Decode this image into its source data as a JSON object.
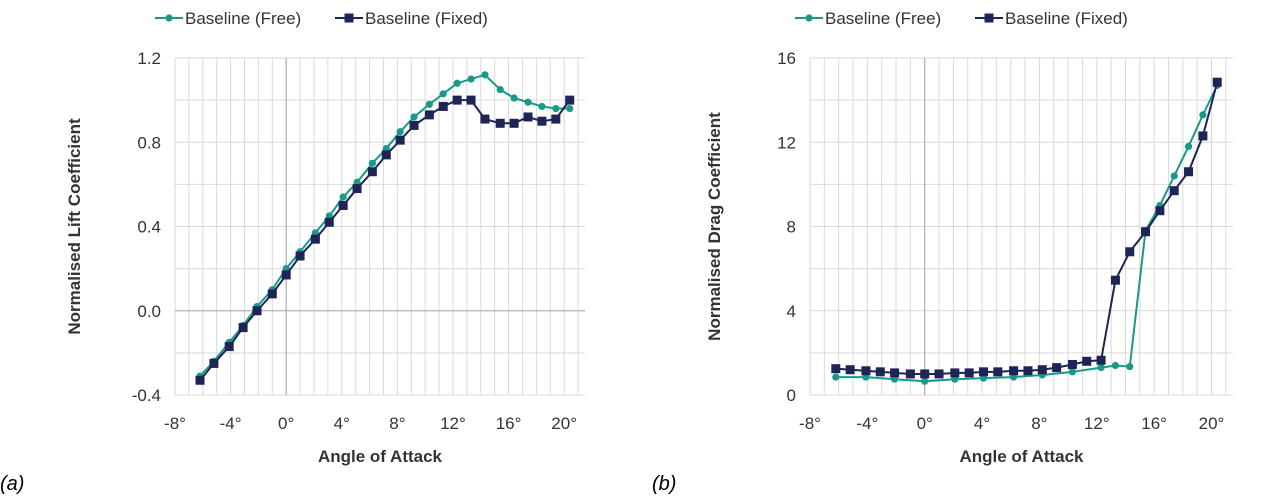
{
  "chart_data": [
    {
      "type": "line",
      "panel_label": "(a)",
      "xlabel": "Angle of Attack",
      "ylabel": "Normalised Lift Coefficient",
      "xlim": [
        -8,
        21.5
      ],
      "ylim": [
        -0.4,
        1.2
      ],
      "x_ticks": [
        -8,
        -4,
        0,
        4,
        8,
        12,
        16,
        20
      ],
      "x_tick_labels": [
        "-8°",
        "-4°",
        "0°",
        "4°",
        "8°",
        "12°",
        "16°",
        "20°"
      ],
      "y_ticks": [
        -0.4,
        0.0,
        0.4,
        0.8,
        1.2
      ],
      "y_tick_labels": [
        "-0.4",
        "0.0",
        "0.4",
        "0.8",
        "1.2"
      ],
      "grid": true,
      "legend_position": "top",
      "series": [
        {
          "name": "Baseline (Free)",
          "color": "#1a9988",
          "marker": "circle",
          "x": [
            -6.2,
            -5.2,
            -4.1,
            -3.1,
            -2.1,
            -1.0,
            0.0,
            1.0,
            2.1,
            3.1,
            4.1,
            5.1,
            6.2,
            7.2,
            8.2,
            9.2,
            10.3,
            11.3,
            12.3,
            13.3,
            14.3,
            15.4,
            16.4,
            17.4,
            18.4,
            19.4,
            20.4
          ],
          "y": [
            -0.31,
            -0.24,
            -0.15,
            -0.07,
            0.02,
            0.1,
            0.2,
            0.28,
            0.37,
            0.45,
            0.54,
            0.61,
            0.7,
            0.77,
            0.85,
            0.92,
            0.98,
            1.03,
            1.08,
            1.1,
            1.12,
            1.05,
            1.01,
            0.99,
            0.97,
            0.96,
            0.96
          ]
        },
        {
          "name": "Baseline (Fixed)",
          "color": "#1e2456",
          "marker": "square",
          "x": [
            -6.2,
            -5.2,
            -4.1,
            -3.1,
            -2.1,
            -1.0,
            0.0,
            1.0,
            2.1,
            3.1,
            4.1,
            5.1,
            6.2,
            7.2,
            8.2,
            9.2,
            10.3,
            11.3,
            12.3,
            13.3,
            14.3,
            15.4,
            16.4,
            17.4,
            18.4,
            19.4,
            20.4
          ],
          "y": [
            -0.33,
            -0.25,
            -0.17,
            -0.08,
            0.0,
            0.08,
            0.17,
            0.26,
            0.34,
            0.42,
            0.5,
            0.58,
            0.66,
            0.74,
            0.81,
            0.88,
            0.93,
            0.97,
            1.0,
            1.0,
            0.91,
            0.89,
            0.89,
            0.92,
            0.9,
            0.91,
            1.0
          ]
        }
      ]
    },
    {
      "type": "line",
      "panel_label": "(b)",
      "xlabel": "Angle of Attack",
      "ylabel": "Normalised Drag Coefficient",
      "xlim": [
        -8,
        21.5
      ],
      "ylim": [
        0,
        16
      ],
      "x_ticks": [
        -8,
        -4,
        0,
        4,
        8,
        12,
        16,
        20
      ],
      "x_tick_labels": [
        "-8°",
        "-4°",
        "0°",
        "4°",
        "8°",
        "12°",
        "16°",
        "20°"
      ],
      "y_ticks": [
        0,
        4,
        8,
        12,
        16
      ],
      "y_tick_labels": [
        "0",
        "4",
        "8",
        "12",
        "16"
      ],
      "grid": true,
      "legend_position": "top",
      "series": [
        {
          "name": "Baseline (Free)",
          "color": "#1a9988",
          "marker": "circle",
          "x": [
            -6.2,
            -4.1,
            -2.1,
            0.0,
            2.1,
            4.1,
            6.2,
            8.2,
            10.3,
            12.3,
            13.3,
            14.3,
            15.4,
            16.4,
            17.4,
            18.4,
            19.4,
            20.4
          ],
          "y": [
            0.85,
            0.85,
            0.75,
            0.65,
            0.75,
            0.8,
            0.85,
            0.95,
            1.1,
            1.3,
            1.4,
            1.35,
            7.8,
            9.0,
            10.4,
            11.8,
            13.3,
            14.7
          ]
        },
        {
          "name": "Baseline (Fixed)",
          "color": "#1e2456",
          "marker": "square",
          "x": [
            -6.2,
            -5.2,
            -4.1,
            -3.1,
            -2.1,
            -1.0,
            0.0,
            1.0,
            2.1,
            3.1,
            4.1,
            5.1,
            6.2,
            7.2,
            8.2,
            9.2,
            10.3,
            11.3,
            12.3,
            13.3,
            14.3,
            15.4,
            16.4,
            17.4,
            18.4,
            19.4,
            20.4
          ],
          "y": [
            1.25,
            1.2,
            1.15,
            1.1,
            1.05,
            1.0,
            1.0,
            1.0,
            1.05,
            1.05,
            1.1,
            1.1,
            1.15,
            1.15,
            1.2,
            1.3,
            1.45,
            1.6,
            1.65,
            5.45,
            6.8,
            7.75,
            8.75,
            9.7,
            10.6,
            12.3,
            14.85
          ]
        }
      ]
    }
  ]
}
